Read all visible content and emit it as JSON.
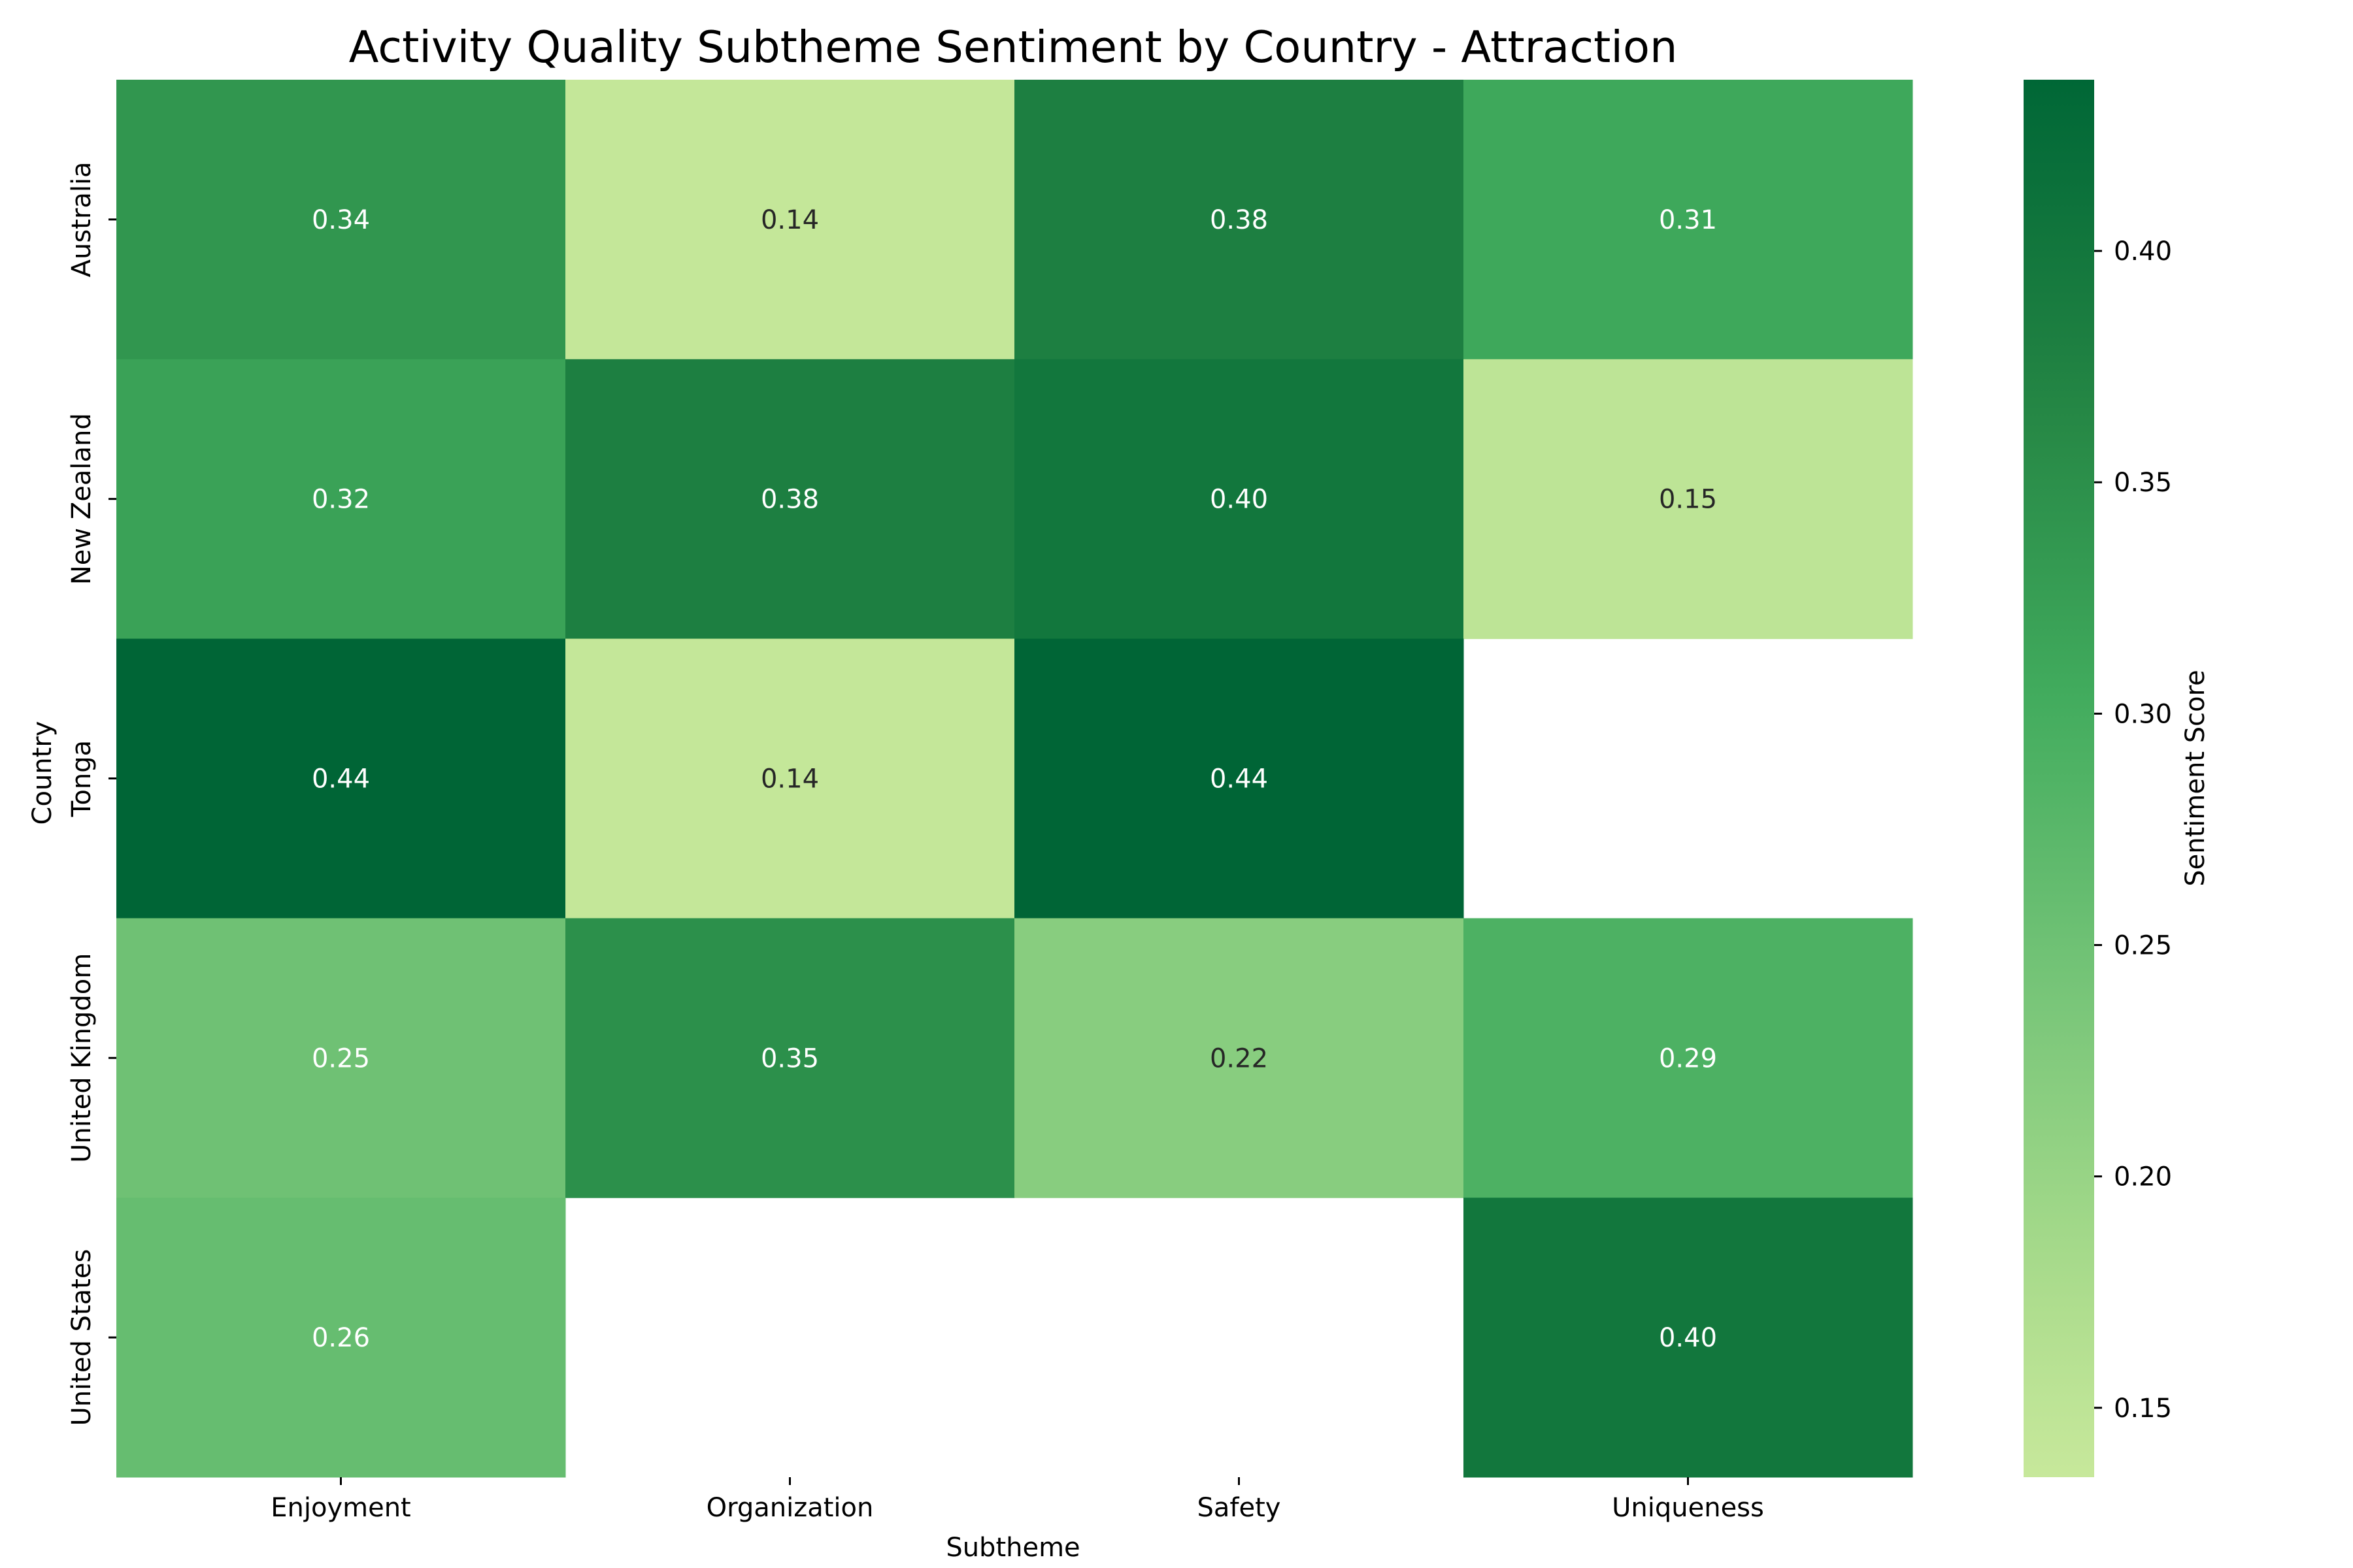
{
  "chart_data": {
    "type": "heatmap",
    "title": "Activity Quality Subtheme Sentiment by Country - Attraction",
    "xlabel": "Subtheme",
    "ylabel": "Country",
    "x_categories": [
      "Enjoyment",
      "Organization",
      "Safety",
      "Uniqueness"
    ],
    "y_categories": [
      "Australia",
      "New Zealand",
      "Tonga",
      "United Kingdom",
      "United States"
    ],
    "values": [
      [
        0.34,
        0.14,
        0.38,
        0.31
      ],
      [
        0.32,
        0.38,
        0.4,
        0.15
      ],
      [
        0.44,
        0.14,
        0.44,
        null
      ],
      [
        0.25,
        0.35,
        0.22,
        0.29
      ],
      [
        0.26,
        null,
        null,
        0.4
      ]
    ],
    "value_labels": [
      [
        "0.34",
        "0.14",
        "0.38",
        "0.31"
      ],
      [
        "0.32",
        "0.38",
        "0.40",
        "0.15"
      ],
      [
        "0.44",
        "0.14",
        "0.44",
        null
      ],
      [
        "0.25",
        "0.35",
        "0.22",
        "0.29"
      ],
      [
        "0.26",
        null,
        null,
        "0.40"
      ]
    ],
    "colormap": "YlGn",
    "color_range": [
      0.135,
      0.437
    ],
    "colorbar": {
      "label": "Sentiment Score",
      "ticks": [
        0.15,
        0.2,
        0.25,
        0.3,
        0.35,
        0.4
      ],
      "tick_labels": [
        "0.15",
        "0.20",
        "0.25",
        "0.30",
        "0.35",
        "0.40"
      ]
    },
    "missing_cells": "blank"
  }
}
